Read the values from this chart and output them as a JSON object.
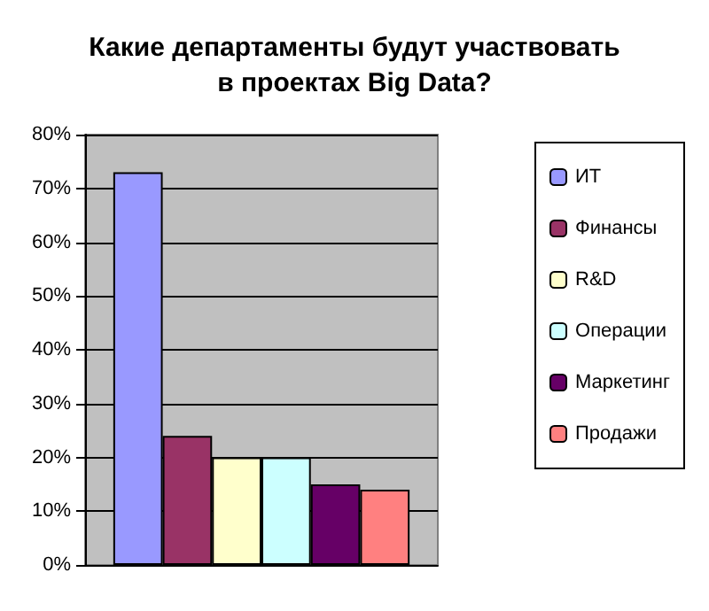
{
  "chart_data": {
    "type": "bar",
    "title": "Какие департаменты будут участвовать\nв проектах Big Data?",
    "categories": [
      null
    ],
    "series": [
      {
        "name": "ИТ",
        "color": "#9999ff",
        "values": [
          73
        ]
      },
      {
        "name": "Финансы",
        "color": "#993366",
        "values": [
          24
        ]
      },
      {
        "name": "R&D",
        "color": "#ffffcc",
        "values": [
          20
        ]
      },
      {
        "name": "Операции",
        "color": "#ccffff",
        "values": [
          20
        ]
      },
      {
        "name": "Маркетинг",
        "color": "#660066",
        "values": [
          15
        ]
      },
      {
        "name": "Продажи",
        "color": "#ff8080",
        "values": [
          14
        ]
      }
    ],
    "ylim": [
      0,
      80
    ],
    "yticks": [
      {
        "value": 0,
        "label": "0%"
      },
      {
        "value": 10,
        "label": "10%"
      },
      {
        "value": 20,
        "label": "20%"
      },
      {
        "value": 30,
        "label": "30%"
      },
      {
        "value": 40,
        "label": "40%"
      },
      {
        "value": 50,
        "label": "50%"
      },
      {
        "value": 60,
        "label": "60%"
      },
      {
        "value": 70,
        "label": "70%"
      },
      {
        "value": 80,
        "label": "80%"
      }
    ],
    "grid": "y",
    "legend": "right"
  }
}
